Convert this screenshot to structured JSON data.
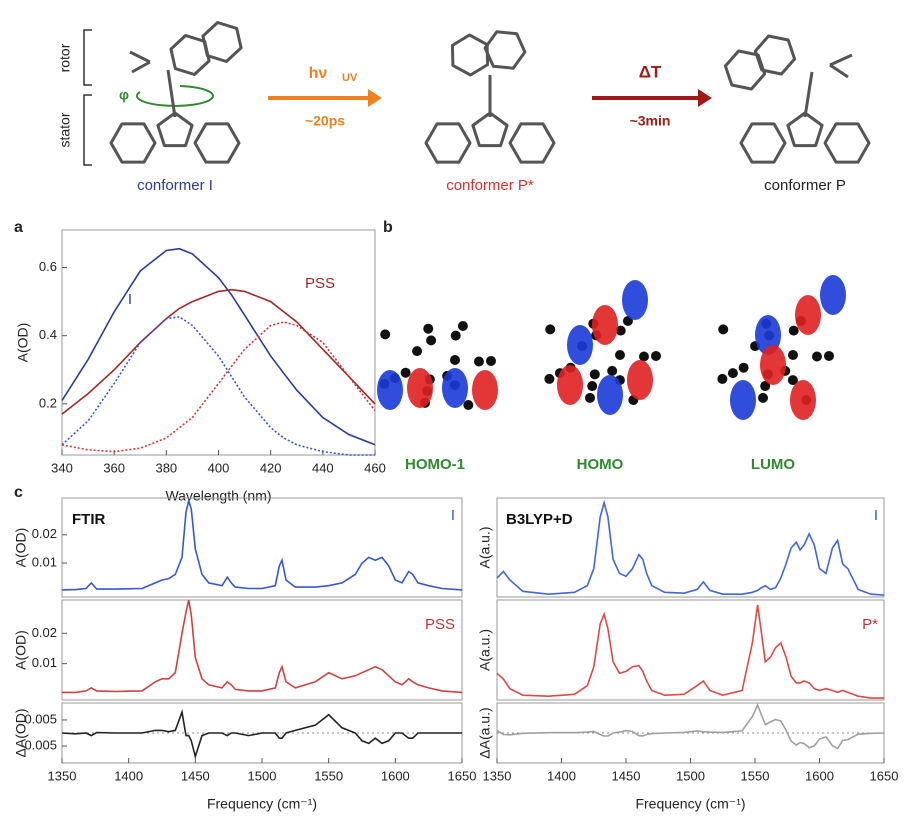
{
  "scheme": {
    "rotor": "rotor",
    "stator": "stator",
    "phi": "φ",
    "step1": {
      "symbol": "hν",
      "subscript": "UV",
      "time": "~20ps"
    },
    "step2": {
      "symbol": "ΔT",
      "time": "~3min"
    },
    "conformers": [
      "conformer I",
      "conformer P*",
      "conformer P"
    ]
  },
  "panels": [
    "a",
    "b",
    "c"
  ],
  "orbitals": [
    "HOMO-1",
    "HOMO",
    "LUMO"
  ],
  "chart_data": [
    {
      "type": "line",
      "ylabel": "A(OD)",
      "xlabel": "Wavelength (nm)",
      "xlim": [
        340,
        460
      ],
      "xticks": [
        340,
        360,
        380,
        400,
        420,
        440,
        460
      ],
      "ylim": [
        0.05,
        0.71
      ],
      "yticks": [
        0.2,
        0.4,
        0.6
      ],
      "x": [
        340,
        350,
        360,
        370,
        380,
        385,
        390,
        400,
        405,
        410,
        420,
        425,
        430,
        440,
        450,
        460
      ],
      "annotations": [
        {
          "text": "I",
          "color": "#2a3a9a"
        },
        {
          "text": "PSS",
          "color": "#a02828"
        }
      ],
      "series": [
        {
          "color": "#2a3a9a",
          "dash": false,
          "values": [
            0.21,
            0.33,
            0.47,
            0.59,
            0.65,
            0.655,
            0.64,
            0.57,
            0.52,
            0.46,
            0.34,
            0.29,
            0.24,
            0.16,
            0.11,
            0.08
          ]
        },
        {
          "color": "#a02828",
          "dash": false,
          "values": [
            0.17,
            0.23,
            0.3,
            0.38,
            0.45,
            0.48,
            0.5,
            0.53,
            0.535,
            0.53,
            0.5,
            0.47,
            0.44,
            0.36,
            0.28,
            0.2
          ]
        },
        {
          "color": "#3556d6",
          "dash": true,
          "values": [
            0.08,
            0.15,
            0.26,
            0.38,
            0.45,
            0.455,
            0.43,
            0.34,
            0.28,
            0.22,
            0.13,
            0.1,
            0.08,
            0.06,
            0.05,
            0.05
          ]
        },
        {
          "color": "#e03030",
          "dash": true,
          "values": [
            0.08,
            0.065,
            0.06,
            0.07,
            0.1,
            0.13,
            0.16,
            0.26,
            0.31,
            0.36,
            0.43,
            0.44,
            0.43,
            0.38,
            0.28,
            0.18
          ]
        }
      ]
    },
    {
      "type": "line",
      "ylabel": "A(OD)",
      "xlim": [
        1350,
        1650
      ],
      "ylim": [
        -0.002,
        0.033
      ],
      "yticks": [
        0.01,
        0.02
      ],
      "x": [
        1350,
        1360,
        1368,
        1372,
        1376,
        1390,
        1410,
        1420,
        1425,
        1430,
        1435,
        1440,
        1443,
        1445,
        1447,
        1450,
        1455,
        1460,
        1470,
        1474,
        1477,
        1480,
        1490,
        1500,
        1510,
        1513,
        1515,
        1518,
        1525,
        1540,
        1550,
        1560,
        1570,
        1575,
        1580,
        1585,
        1590,
        1595,
        1600,
        1605,
        1610,
        1613,
        1617,
        1625,
        1635,
        1650
      ],
      "annotations": [
        {
          "text": "FTIR",
          "color": "#111111"
        },
        {
          "text": "I",
          "color": "#3556d6"
        }
      ],
      "series": [
        {
          "color": "#3556d6",
          "dash": false,
          "values": [
            0.0005,
            0.0006,
            0.001,
            0.003,
            0.0008,
            0.0008,
            0.001,
            0.003,
            0.004,
            0.0045,
            0.006,
            0.012,
            0.028,
            0.032,
            0.029,
            0.015,
            0.006,
            0.003,
            0.002,
            0.005,
            0.003,
            0.0015,
            0.001,
            0.001,
            0.002,
            0.009,
            0.011,
            0.004,
            0.0015,
            0.0015,
            0.002,
            0.003,
            0.006,
            0.01,
            0.012,
            0.011,
            0.012,
            0.009,
            0.004,
            0.003,
            0.007,
            0.006,
            0.003,
            0.002,
            0.001,
            0.0005
          ]
        }
      ]
    },
    {
      "type": "line",
      "ylabel": "A(OD)",
      "xlim": [
        1350,
        1650
      ],
      "ylim": [
        -0.002,
        0.031
      ],
      "yticks": [
        0.01,
        0.02
      ],
      "x": [
        1350,
        1360,
        1368,
        1372,
        1376,
        1390,
        1410,
        1420,
        1425,
        1430,
        1435,
        1440,
        1443,
        1445,
        1447,
        1450,
        1455,
        1460,
        1470,
        1474,
        1477,
        1480,
        1490,
        1500,
        1510,
        1513,
        1515,
        1518,
        1525,
        1540,
        1550,
        1560,
        1570,
        1575,
        1580,
        1585,
        1590,
        1595,
        1600,
        1605,
        1610,
        1613,
        1617,
        1625,
        1635,
        1650
      ],
      "annotations": [
        {
          "text": "PSS",
          "color": "#c83030"
        }
      ],
      "series": [
        {
          "color": "#d04040",
          "dash": false,
          "values": [
            0.0005,
            0.0005,
            0.001,
            0.002,
            0.001,
            0.0008,
            0.001,
            0.004,
            0.005,
            0.005,
            0.007,
            0.02,
            0.027,
            0.031,
            0.026,
            0.012,
            0.005,
            0.003,
            0.002,
            0.004,
            0.003,
            0.0015,
            0.001,
            0.001,
            0.002,
            0.007,
            0.009,
            0.004,
            0.002,
            0.004,
            0.007,
            0.005,
            0.006,
            0.007,
            0.008,
            0.009,
            0.008,
            0.006,
            0.004,
            0.003,
            0.005,
            0.004,
            0.003,
            0.002,
            0.001,
            0.0005
          ]
        }
      ]
    },
    {
      "type": "line",
      "ylabel": "ΔA(OD)",
      "xlabel": "Frequency (cm⁻¹)",
      "xlim": [
        1350,
        1650
      ],
      "xticks": [
        1350,
        1400,
        1450,
        1500,
        1550,
        1600,
        1650
      ],
      "ylim": [
        -0.0115,
        0.0115
      ],
      "yticks": [
        -0.005,
        0.005
      ],
      "reference_line": 0,
      "x": [
        1350,
        1360,
        1368,
        1372,
        1376,
        1390,
        1410,
        1420,
        1425,
        1430,
        1435,
        1440,
        1443,
        1445,
        1447,
        1450,
        1455,
        1460,
        1470,
        1474,
        1477,
        1480,
        1490,
        1500,
        1510,
        1513,
        1515,
        1518,
        1525,
        1540,
        1550,
        1560,
        1570,
        1575,
        1580,
        1585,
        1590,
        1595,
        1600,
        1605,
        1610,
        1613,
        1617,
        1625,
        1635,
        1650
      ],
      "annotations": [],
      "series": [
        {
          "color": "#222222",
          "dash": false,
          "values": [
            0,
            -0.0003,
            0,
            -0.001,
            0.0002,
            0,
            0,
            0.001,
            0.001,
            0.0005,
            0.001,
            0.008,
            -0.001,
            -0.001,
            -0.003,
            -0.009,
            -0.001,
            0,
            0,
            -0.001,
            0,
            0,
            -0.001,
            0,
            0,
            -0.002,
            -0.002,
            0,
            0.001,
            0.003,
            0.007,
            0.002,
            0,
            -0.003,
            -0.004,
            -0.002,
            -0.004,
            -0.003,
            0,
            0,
            -0.002,
            -0.002,
            0,
            0,
            0,
            0
          ]
        }
      ]
    },
    {
      "type": "line",
      "ylabel": "A(a.u.)",
      "xlim": [
        1350,
        1650
      ],
      "ylim": [
        0,
        1.05
      ],
      "x": [
        1350,
        1355,
        1360,
        1370,
        1390,
        1410,
        1420,
        1425,
        1430,
        1433,
        1436,
        1440,
        1445,
        1450,
        1455,
        1460,
        1463,
        1466,
        1470,
        1480,
        1495,
        1505,
        1510,
        1515,
        1525,
        1540,
        1548,
        1552,
        1555,
        1558,
        1562,
        1566,
        1570,
        1574,
        1578,
        1582,
        1585,
        1588,
        1592,
        1596,
        1600,
        1605,
        1610,
        1614,
        1618,
        1622,
        1630,
        1640,
        1650
      ],
      "annotations": [
        {
          "text": "B3LYP+D",
          "color": "#111111"
        },
        {
          "text": "I",
          "color": "#3556d6"
        }
      ],
      "series": [
        {
          "color": "#3f66e0",
          "dash": false,
          "values": [
            0.2,
            0.27,
            0.18,
            0.06,
            0.03,
            0.05,
            0.12,
            0.3,
            0.85,
            1.0,
            0.85,
            0.4,
            0.25,
            0.22,
            0.3,
            0.45,
            0.4,
            0.25,
            0.12,
            0.05,
            0.04,
            0.08,
            0.16,
            0.07,
            0.03,
            0.03,
            0.05,
            0.07,
            0.1,
            0.12,
            0.08,
            0.1,
            0.2,
            0.35,
            0.52,
            0.58,
            0.5,
            0.55,
            0.67,
            0.55,
            0.3,
            0.25,
            0.52,
            0.6,
            0.35,
            0.3,
            0.08,
            0.03,
            0.02
          ]
        }
      ]
    },
    {
      "type": "line",
      "ylabel": "A(a.u.)",
      "xlim": [
        1350,
        1650
      ],
      "ylim": [
        0,
        1.05
      ],
      "x": [
        1350,
        1355,
        1360,
        1370,
        1390,
        1410,
        1420,
        1425,
        1430,
        1433,
        1436,
        1440,
        1445,
        1450,
        1455,
        1460,
        1463,
        1466,
        1470,
        1480,
        1495,
        1505,
        1510,
        1515,
        1525,
        1540,
        1548,
        1552,
        1555,
        1558,
        1562,
        1566,
        1570,
        1574,
        1578,
        1582,
        1585,
        1588,
        1592,
        1596,
        1600,
        1605,
        1610,
        1614,
        1618,
        1622,
        1630,
        1640,
        1650
      ],
      "annotations": [
        {
          "text": "P*",
          "color": "#c83030"
        }
      ],
      "series": [
        {
          "color": "#e04848",
          "dash": false,
          "values": [
            0.28,
            0.22,
            0.12,
            0.05,
            0.04,
            0.06,
            0.15,
            0.35,
            0.8,
            0.9,
            0.75,
            0.4,
            0.28,
            0.3,
            0.35,
            0.36,
            0.3,
            0.2,
            0.1,
            0.05,
            0.06,
            0.15,
            0.2,
            0.1,
            0.05,
            0.1,
            0.6,
            1.0,
            0.7,
            0.4,
            0.45,
            0.55,
            0.6,
            0.45,
            0.25,
            0.18,
            0.18,
            0.2,
            0.18,
            0.12,
            0.1,
            0.12,
            0.1,
            0.08,
            0.1,
            0.08,
            0.04,
            0.02,
            0.02
          ]
        }
      ]
    },
    {
      "type": "line",
      "ylabel": "ΔA(a.u.)",
      "xlabel": "Frequency (cm⁻¹)",
      "xlim": [
        1350,
        1650
      ],
      "xticks": [
        1350,
        1400,
        1450,
        1500,
        1550,
        1600,
        1650
      ],
      "ylim": [
        -1,
        1
      ],
      "reference_line": 0,
      "x": [
        1350,
        1355,
        1360,
        1370,
        1390,
        1410,
        1420,
        1425,
        1430,
        1433,
        1436,
        1440,
        1445,
        1450,
        1455,
        1460,
        1463,
        1466,
        1470,
        1480,
        1495,
        1505,
        1510,
        1515,
        1525,
        1540,
        1548,
        1552,
        1555,
        1558,
        1562,
        1566,
        1570,
        1574,
        1578,
        1582,
        1585,
        1588,
        1592,
        1596,
        1600,
        1605,
        1610,
        1614,
        1618,
        1622,
        1630,
        1640,
        1650
      ],
      "annotations": [],
      "series": [
        {
          "color": "#a0a0a0",
          "dash": false,
          "values": [
            0.08,
            -0.05,
            -0.06,
            -0.01,
            0.01,
            0.01,
            0.03,
            0.05,
            -0.05,
            -0.1,
            -0.1,
            0,
            0.03,
            0.08,
            0.05,
            -0.09,
            -0.1,
            -0.05,
            -0.02,
            0,
            0.02,
            0.07,
            0.04,
            0.03,
            0.02,
            0.07,
            0.55,
            0.93,
            0.6,
            0.28,
            0.37,
            0.45,
            0.4,
            0.1,
            -0.27,
            -0.4,
            -0.32,
            -0.35,
            -0.49,
            -0.43,
            -0.2,
            -0.13,
            -0.42,
            -0.52,
            -0.25,
            -0.22,
            -0.04,
            -0.01,
            0
          ]
        }
      ]
    }
  ]
}
